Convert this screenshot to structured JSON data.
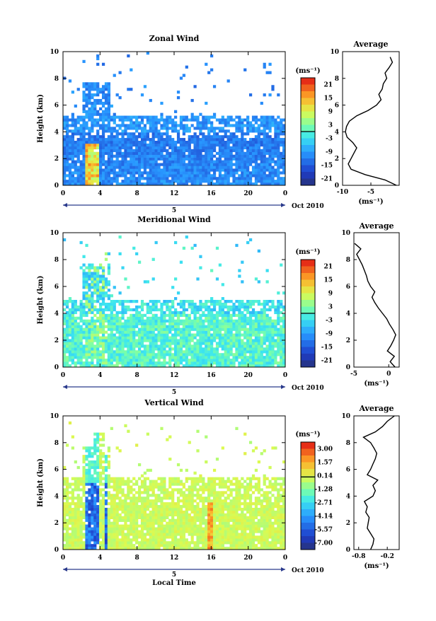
{
  "panel_suffix": "Average",
  "chart_data": [
    {
      "type": "heatmap",
      "title": "Zonal Wind",
      "ylabel": "Height (km)",
      "xlabel": "",
      "x_ticks": [
        "0",
        "4",
        "8",
        "12",
        "16",
        "20",
        "0"
      ],
      "y_ticks": [
        "0",
        "2",
        "4",
        "6",
        "8",
        "10"
      ],
      "xlim": [
        0,
        24
      ],
      "ylim": [
        0,
        10
      ],
      "date_day": "5",
      "date_label": "Oct 2010",
      "colorbar": {
        "unit": "(ms⁻¹)",
        "ticks": [
          "21",
          "15",
          "9",
          "3",
          "-3",
          "-9",
          "-15",
          "-21"
        ],
        "range": [
          -24,
          24
        ],
        "zero_line": 0
      },
      "average_profile": {
        "title": "Average",
        "xlabel": "(ms⁻¹)",
        "x_ticks": [
          "-10",
          "-5"
        ],
        "xlim": [
          -10,
          0
        ],
        "y_ticks": [
          "0",
          "2",
          "4",
          "6",
          "8",
          "10"
        ],
        "height": [
          0,
          0.4,
          0.8,
          1.2,
          1.6,
          2.0,
          2.4,
          2.8,
          3.2,
          3.6,
          4.0,
          4.4,
          4.8,
          5.2,
          5.6,
          6.0,
          6.4,
          6.8,
          7.2,
          7.6,
          8.0,
          8.4,
          8.8,
          9.2,
          9.6
        ],
        "value": [
          -0.5,
          -2.5,
          -6,
          -8.5,
          -9,
          -8.5,
          -8,
          -7.5,
          -8.2,
          -9.2,
          -9.5,
          -9.3,
          -8.8,
          -7.5,
          -5.5,
          -4,
          -3.2,
          -3.6,
          -3,
          -2.8,
          -2.2,
          -2.5,
          -1.8,
          -1.2,
          -1.6
        ]
      },
      "seed": 11
    },
    {
      "type": "heatmap",
      "title": "Meridional Wind",
      "ylabel": "Height (km)",
      "xlabel": "",
      "x_ticks": [
        "0",
        "4",
        "8",
        "12",
        "16",
        "20",
        "0"
      ],
      "y_ticks": [
        "0",
        "2",
        "4",
        "6",
        "8",
        "10"
      ],
      "xlim": [
        0,
        24
      ],
      "ylim": [
        0,
        10
      ],
      "date_day": "5",
      "date_label": "Oct 2010",
      "colorbar": {
        "unit": "(ms⁻¹)",
        "ticks": [
          "21",
          "15",
          "9",
          "3",
          "-3",
          "-9",
          "-15",
          "-21"
        ],
        "range": [
          -24,
          24
        ],
        "zero_line": 0
      },
      "average_profile": {
        "title": "Average",
        "xlabel": "(ms⁻¹)",
        "x_ticks": [
          "-5",
          "0"
        ],
        "xlim": [
          -5,
          1.5
        ],
        "y_ticks": [
          "0",
          "2",
          "4",
          "6",
          "8",
          "10"
        ],
        "height": [
          0,
          0.4,
          0.8,
          1.2,
          1.6,
          2.0,
          2.4,
          2.8,
          3.2,
          3.6,
          4.0,
          4.4,
          4.8,
          5.2,
          5.6,
          6.0,
          6.4,
          6.8,
          7.2,
          7.6,
          8.0,
          8.4,
          8.8,
          9.2
        ],
        "value": [
          0.9,
          0.2,
          0.8,
          -0.2,
          0.3,
          0.7,
          1.0,
          0.6,
          0.1,
          -0.3,
          -0.9,
          -1.5,
          -2.0,
          -2.4,
          -2.0,
          -2.6,
          -3.0,
          -3.2,
          -3.5,
          -3.8,
          -4.2,
          -4.6,
          -4.0,
          -4.9
        ]
      },
      "seed": 23
    },
    {
      "type": "heatmap",
      "title": "Vertical Wind",
      "ylabel": "Height (km)",
      "xlabel": "Local Time",
      "x_ticks": [
        "0",
        "4",
        "8",
        "12",
        "16",
        "20",
        "0"
      ],
      "y_ticks": [
        "0",
        "2",
        "4",
        "6",
        "8",
        "10"
      ],
      "xlim": [
        0,
        24
      ],
      "ylim": [
        0,
        10
      ],
      "date_day": "5",
      "date_label": "Oct 2010",
      "colorbar": {
        "unit": "(ms⁻¹)",
        "ticks": [
          "3.00",
          "1.57",
          "0.14",
          "-1.28",
          "-2.71",
          "-4.14",
          "-5.57",
          "-7.00"
        ],
        "range": [
          -7.7,
          3.7
        ],
        "zero_line": 0
      },
      "average_profile": {
        "title": "Average",
        "xlabel": "(ms⁻¹)",
        "x_ticks": [
          "-0.8",
          "-0.2"
        ],
        "xlim": [
          -0.9,
          0.05
        ],
        "y_ticks": [
          "0",
          "2",
          "4",
          "6",
          "8",
          "10"
        ],
        "height": [
          0,
          0.4,
          0.8,
          1.2,
          1.6,
          2.0,
          2.4,
          2.8,
          3.2,
          3.6,
          4.0,
          4.4,
          4.8,
          5.2,
          5.6,
          6.0,
          6.4,
          6.8,
          7.2,
          7.6,
          8.0,
          8.4,
          8.8,
          9.2,
          9.6,
          10.0
        ],
        "value": [
          -0.55,
          -0.5,
          -0.48,
          -0.55,
          -0.62,
          -0.6,
          -0.58,
          -0.65,
          -0.62,
          -0.68,
          -0.5,
          -0.45,
          -0.5,
          -0.4,
          -0.62,
          -0.55,
          -0.5,
          -0.45,
          -0.42,
          -0.48,
          -0.55,
          -0.7,
          -0.45,
          -0.3,
          -0.2,
          -0.05
        ]
      },
      "seed": 37
    }
  ]
}
